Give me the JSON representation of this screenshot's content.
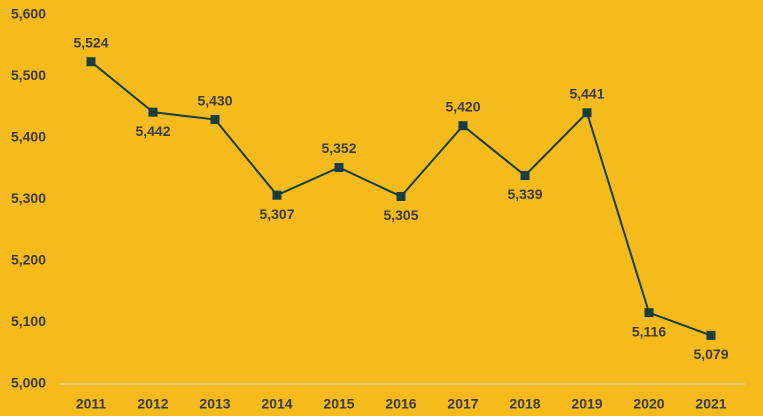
{
  "chart_data": {
    "type": "line",
    "categories": [
      "2011",
      "2012",
      "2013",
      "2014",
      "2015",
      "2016",
      "2017",
      "2018",
      "2019",
      "2020",
      "2021"
    ],
    "values": [
      5524,
      5442,
      5430,
      5307,
      5352,
      5305,
      5420,
      5339,
      5441,
      5116,
      5079
    ],
    "value_labels": [
      "5,524",
      "5,442",
      "5,430",
      "5,307",
      "5,352",
      "5,305",
      "5,420",
      "5,339",
      "5,441",
      "5,116",
      "5,079"
    ],
    "color": "#173d3d",
    "ylim": [
      5000,
      5600
    ],
    "yticks": [
      {
        "value": 5000,
        "label": "5,000"
      },
      {
        "value": 5100,
        "label": "5,100"
      },
      {
        "value": 5200,
        "label": "5,200"
      },
      {
        "value": 5300,
        "label": "5,300"
      },
      {
        "value": 5400,
        "label": "5,400"
      },
      {
        "value": 5500,
        "label": "5,500"
      },
      {
        "value": 5600,
        "label": "5,600"
      }
    ],
    "grid": false
  }
}
